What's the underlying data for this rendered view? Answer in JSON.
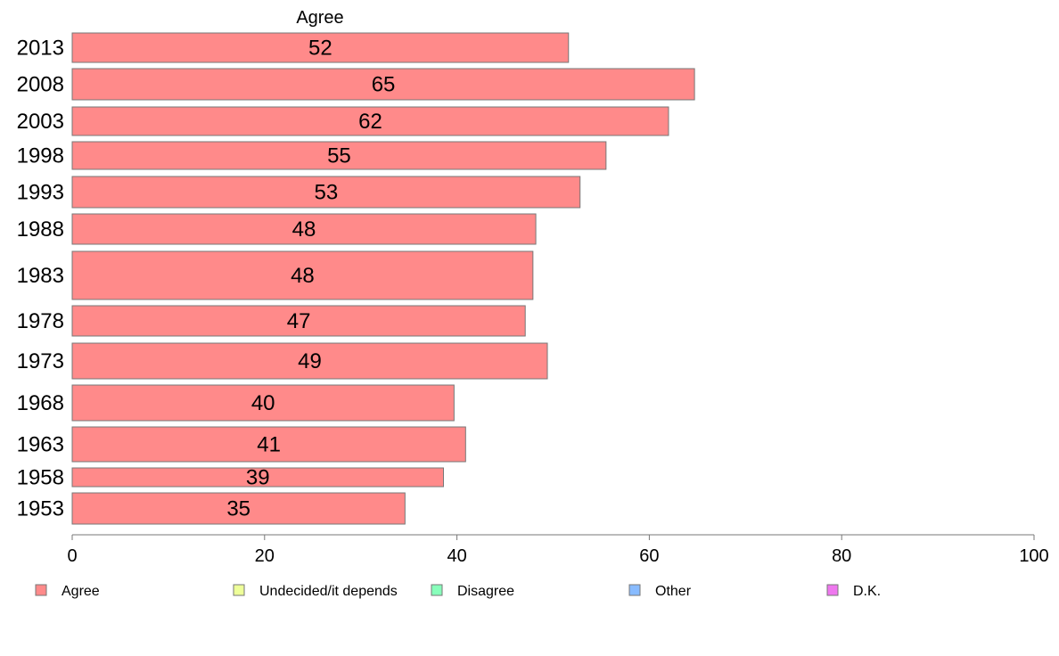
{
  "chart_data": {
    "type": "bar",
    "orientation": "horizontal",
    "header": "Agree",
    "categories": [
      "2013",
      "2008",
      "2003",
      "1998",
      "1993",
      "1988",
      "1983",
      "1978",
      "1973",
      "1968",
      "1963",
      "1958",
      "1953"
    ],
    "series": [
      {
        "name": "Agree",
        "color": "#ff8a8a",
        "values": [
          51.6,
          64.7,
          62.0,
          55.5,
          52.8,
          48.2,
          47.9,
          47.1,
          49.4,
          39.7,
          40.9,
          38.6,
          34.6
        ],
        "labels": [
          "52",
          "65",
          "62",
          "55",
          "53",
          "48",
          "48",
          "47",
          "49",
          "40",
          "41",
          "39",
          "35"
        ]
      }
    ],
    "xlim": [
      0,
      100
    ],
    "xticks": [
      "0",
      "20",
      "40",
      "60",
      "80",
      "100"
    ],
    "grid": false,
    "legend": {
      "position": "bottom",
      "items": [
        {
          "label": "Agree",
          "color": "#ff8a8a"
        },
        {
          "label": "Undecided/it depends",
          "color": "#eeff99"
        },
        {
          "label": "Disagree",
          "color": "#88ffbb"
        },
        {
          "label": "Other",
          "color": "#88bbff"
        },
        {
          "label": "D.K.",
          "color": "#ee77ee"
        }
      ]
    }
  }
}
